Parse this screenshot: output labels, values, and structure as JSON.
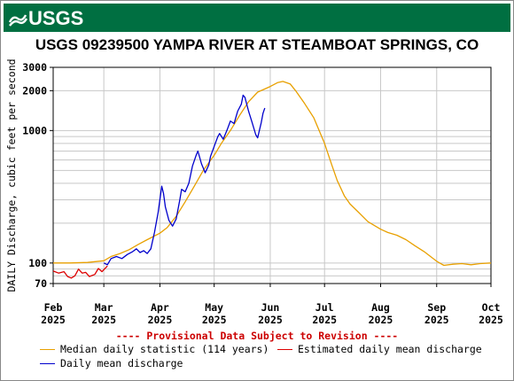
{
  "header": {
    "logo_text": "USGS",
    "title": "USGS 09239500 YAMPA RIVER AT STEAMBOAT SPRINGS, CO"
  },
  "notice": "---- Provisional Data Subject to Revision ----",
  "legend": {
    "median": "Median daily statistic (114 years)",
    "estimated": "Estimated daily mean discharge",
    "daily": "Daily mean discharge"
  },
  "colors": {
    "median": "#e8a000",
    "estimated": "#dd0000",
    "daily": "#0000cc",
    "banner": "#006f41",
    "notice": "#cc0000"
  },
  "chart_data": {
    "type": "line",
    "y_scale": "log",
    "ylabel": "DAILY Discharge, cubic feet per second",
    "xlabel": "",
    "ylim": [
      70,
      3000
    ],
    "xlim": [
      "2025-02-01",
      "2025-10-01"
    ],
    "y_ticks": [
      70,
      100,
      1000,
      2000,
      3000
    ],
    "x_ticks": [
      {
        "date": "2025-02-01",
        "label1": "Feb",
        "label2": "2025"
      },
      {
        "date": "2025-03-01",
        "label1": "Mar",
        "label2": "2025"
      },
      {
        "date": "2025-04-01",
        "label1": "Apr",
        "label2": "2025"
      },
      {
        "date": "2025-05-01",
        "label1": "May",
        "label2": "2025"
      },
      {
        "date": "2025-06-01",
        "label1": "Jun",
        "label2": "2025"
      },
      {
        "date": "2025-07-01",
        "label1": "Jul",
        "label2": "2025"
      },
      {
        "date": "2025-08-01",
        "label1": "Aug",
        "label2": "2025"
      },
      {
        "date": "2025-09-01",
        "label1": "Sep",
        "label2": "2025"
      },
      {
        "date": "2025-10-01",
        "label1": "Oct",
        "label2": "2025"
      }
    ],
    "grid": true,
    "series": [
      {
        "name": "Median daily statistic (114 years)",
        "color": "#e8a000",
        "points": [
          [
            "2025-02-01",
            100
          ],
          [
            "2025-02-10",
            100
          ],
          [
            "2025-02-20",
            101
          ],
          [
            "2025-03-01",
            104
          ],
          [
            "2025-03-05",
            112
          ],
          [
            "2025-03-10",
            118
          ],
          [
            "2025-03-15",
            126
          ],
          [
            "2025-03-20",
            138
          ],
          [
            "2025-03-25",
            150
          ],
          [
            "2025-04-01",
            168
          ],
          [
            "2025-04-05",
            185
          ],
          [
            "2025-04-10",
            225
          ],
          [
            "2025-04-15",
            290
          ],
          [
            "2025-04-20",
            380
          ],
          [
            "2025-04-25",
            500
          ],
          [
            "2025-05-01",
            650
          ],
          [
            "2025-05-05",
            800
          ],
          [
            "2025-05-10",
            1000
          ],
          [
            "2025-05-15",
            1300
          ],
          [
            "2025-05-20",
            1650
          ],
          [
            "2025-05-25",
            1950
          ],
          [
            "2025-06-01",
            2150
          ],
          [
            "2025-06-05",
            2300
          ],
          [
            "2025-06-08",
            2350
          ],
          [
            "2025-06-12",
            2250
          ],
          [
            "2025-06-15",
            2000
          ],
          [
            "2025-06-20",
            1600
          ],
          [
            "2025-06-25",
            1250
          ],
          [
            "2025-07-01",
            800
          ],
          [
            "2025-07-05",
            550
          ],
          [
            "2025-07-08",
            420
          ],
          [
            "2025-07-12",
            320
          ],
          [
            "2025-07-15",
            280
          ],
          [
            "2025-07-20",
            240
          ],
          [
            "2025-07-25",
            205
          ],
          [
            "2025-08-01",
            180
          ],
          [
            "2025-08-05",
            170
          ],
          [
            "2025-08-10",
            162
          ],
          [
            "2025-08-15",
            150
          ],
          [
            "2025-08-20",
            135
          ],
          [
            "2025-08-25",
            122
          ],
          [
            "2025-09-01",
            103
          ],
          [
            "2025-09-05",
            96
          ],
          [
            "2025-09-10",
            98
          ],
          [
            "2025-09-15",
            99
          ],
          [
            "2025-09-20",
            97
          ],
          [
            "2025-09-25",
            99
          ],
          [
            "2025-10-01",
            100
          ]
        ]
      },
      {
        "name": "Estimated daily mean discharge",
        "color": "#dd0000",
        "points": [
          [
            "2025-02-01",
            87
          ],
          [
            "2025-02-04",
            84
          ],
          [
            "2025-02-07",
            86
          ],
          [
            "2025-02-09",
            79
          ],
          [
            "2025-02-11",
            77
          ],
          [
            "2025-02-13",
            80
          ],
          [
            "2025-02-15",
            90
          ],
          [
            "2025-02-17",
            84
          ],
          [
            "2025-02-19",
            85
          ],
          [
            "2025-02-21",
            79
          ],
          [
            "2025-02-24",
            82
          ],
          [
            "2025-02-26",
            91
          ],
          [
            "2025-02-28",
            86
          ],
          [
            "2025-03-03",
            95
          ]
        ]
      },
      {
        "name": "Daily mean discharge",
        "color": "#0000cc",
        "points": [
          [
            "2025-03-01",
            100
          ],
          [
            "2025-03-03",
            97
          ],
          [
            "2025-03-05",
            108
          ],
          [
            "2025-03-08",
            112
          ],
          [
            "2025-03-11",
            108
          ],
          [
            "2025-03-14",
            116
          ],
          [
            "2025-03-17",
            122
          ],
          [
            "2025-03-19",
            128
          ],
          [
            "2025-03-21",
            120
          ],
          [
            "2025-03-23",
            124
          ],
          [
            "2025-03-25",
            118
          ],
          [
            "2025-03-27",
            128
          ],
          [
            "2025-03-29",
            170
          ],
          [
            "2025-03-31",
            240
          ],
          [
            "2025-04-01",
            300
          ],
          [
            "2025-04-02",
            380
          ],
          [
            "2025-04-03",
            335
          ],
          [
            "2025-04-04",
            265
          ],
          [
            "2025-04-06",
            210
          ],
          [
            "2025-04-08",
            190
          ],
          [
            "2025-04-10",
            215
          ],
          [
            "2025-04-12",
            300
          ],
          [
            "2025-04-13",
            360
          ],
          [
            "2025-04-15",
            345
          ],
          [
            "2025-04-17",
            400
          ],
          [
            "2025-04-19",
            540
          ],
          [
            "2025-04-21",
            650
          ],
          [
            "2025-04-22",
            700
          ],
          [
            "2025-04-24",
            560
          ],
          [
            "2025-04-25",
            520
          ],
          [
            "2025-04-26",
            480
          ],
          [
            "2025-04-28",
            550
          ],
          [
            "2025-04-29",
            640
          ],
          [
            "2025-05-01",
            760
          ],
          [
            "2025-05-03",
            900
          ],
          [
            "2025-05-04",
            950
          ],
          [
            "2025-05-06",
            860
          ],
          [
            "2025-05-08",
            1000
          ],
          [
            "2025-05-10",
            1180
          ],
          [
            "2025-05-12",
            1130
          ],
          [
            "2025-05-14",
            1400
          ],
          [
            "2025-05-16",
            1580
          ],
          [
            "2025-05-17",
            1850
          ],
          [
            "2025-05-18",
            1780
          ],
          [
            "2025-05-20",
            1400
          ],
          [
            "2025-05-22",
            1150
          ],
          [
            "2025-05-24",
            930
          ],
          [
            "2025-05-25",
            880
          ],
          [
            "2025-05-27",
            1150
          ],
          [
            "2025-05-28",
            1350
          ],
          [
            "2025-05-29",
            1480
          ]
        ]
      }
    ]
  }
}
